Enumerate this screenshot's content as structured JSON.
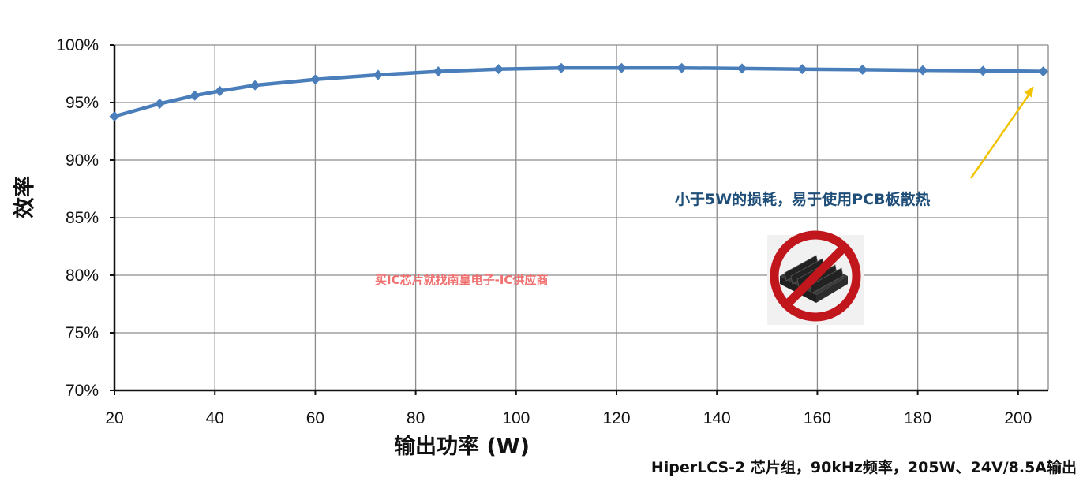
{
  "chart_data": {
    "type": "line",
    "xlabel": "输出功率 (W)",
    "ylabel": "效率",
    "xlim": [
      20,
      206
    ],
    "ylim": [
      70,
      100
    ],
    "x_ticks": [
      "20",
      "40",
      "60",
      "80",
      "100",
      "120",
      "140",
      "160",
      "180",
      "200"
    ],
    "y_ticks": [
      "70%",
      "75%",
      "80%",
      "85%",
      "90%",
      "95%",
      "100%"
    ],
    "grid": true,
    "series": [
      {
        "color": "#4a7ebb",
        "marker": "diamond",
        "points": [
          {
            "x": 20,
            "y": 93.8
          },
          {
            "x": 29,
            "y": 94.9
          },
          {
            "x": 36,
            "y": 95.6
          },
          {
            "x": 41,
            "y": 96.0
          },
          {
            "x": 48,
            "y": 96.5
          },
          {
            "x": 60,
            "y": 97.0
          },
          {
            "x": 72.5,
            "y": 97.4
          },
          {
            "x": 84.5,
            "y": 97.7
          },
          {
            "x": 96.5,
            "y": 97.9
          },
          {
            "x": 109,
            "y": 98.0
          },
          {
            "x": 121,
            "y": 98.0
          },
          {
            "x": 133,
            "y": 98.0
          },
          {
            "x": 145,
            "y": 97.95
          },
          {
            "x": 157,
            "y": 97.9
          },
          {
            "x": 169,
            "y": 97.85
          },
          {
            "x": 181,
            "y": 97.8
          },
          {
            "x": 193,
            "y": 97.75
          },
          {
            "x": 205,
            "y": 97.7
          }
        ]
      }
    ]
  },
  "annotation": {
    "text": "小于5W的损耗，易于使用PCB板散热",
    "arrow_color": "#f2c300",
    "points_to_x": 205
  },
  "watermark": "买IC芯片就找南皇电子-IC供应商",
  "footnote": "HiperLCS-2 芯片组，90kHz频率，205W、24V/8.5A输出",
  "icon": "no-heatsink-icon",
  "colors": {
    "line": "#4a7ebb",
    "annotation_text": "#1f4e79",
    "arrow": "#f2c300",
    "prohibition": "#c0161c",
    "watermark": "#f07070"
  }
}
